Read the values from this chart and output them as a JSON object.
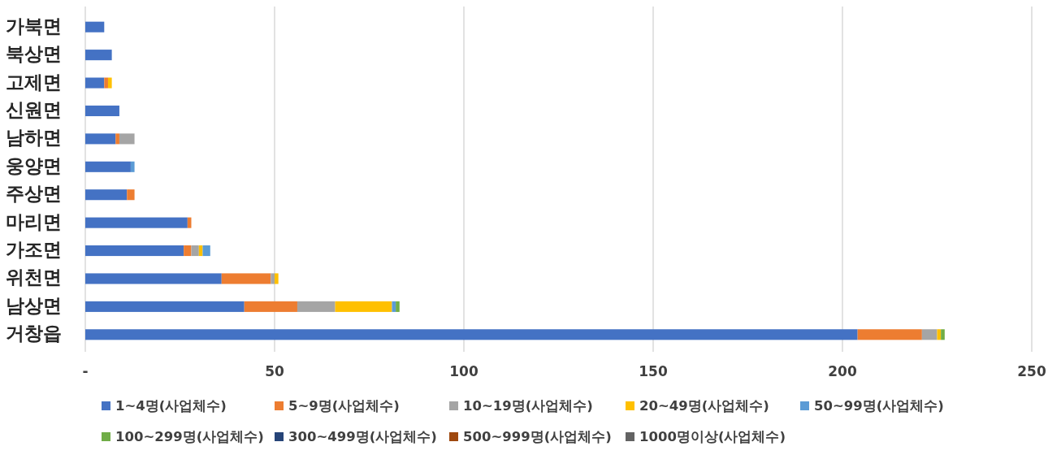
{
  "chart_data": {
    "type": "bar",
    "orientation": "horizontal",
    "stacked": true,
    "categories": [
      "가북면",
      "북상면",
      "고제면",
      "신원면",
      "남하면",
      "웅양면",
      "주상면",
      "마리면",
      "가조면",
      "위천면",
      "남상면",
      "거창읍"
    ],
    "series": [
      {
        "name": "1~4명(사업체수)",
        "color": "#4472c4",
        "values": [
          5,
          7,
          5,
          9,
          8,
          12,
          11,
          27,
          26,
          36,
          42,
          204
        ]
      },
      {
        "name": "5~9명(사업체수)",
        "color": "#ed7d31",
        "values": [
          0,
          0,
          1,
          0,
          1,
          0,
          2,
          1,
          2,
          13,
          14,
          17
        ]
      },
      {
        "name": "10~19명(사업체수)",
        "color": "#a5a5a5",
        "values": [
          0,
          0,
          0,
          0,
          4,
          0,
          0,
          0,
          2,
          1,
          10,
          4
        ]
      },
      {
        "name": "20~49명(사업체수)",
        "color": "#ffc000",
        "values": [
          0,
          0,
          1,
          0,
          0,
          0,
          0,
          0,
          1,
          1,
          15,
          1
        ]
      },
      {
        "name": "50~99명(사업체수)",
        "color": "#5b9bd5",
        "values": [
          0,
          0,
          0,
          0,
          0,
          1,
          0,
          0,
          2,
          0,
          1,
          0
        ]
      },
      {
        "name": "100~299명(사업체수)",
        "color": "#70ad47",
        "values": [
          0,
          0,
          0,
          0,
          0,
          0,
          0,
          0,
          0,
          0,
          1,
          1
        ]
      },
      {
        "name": "300~499명(사업체수)",
        "color": "#264478",
        "values": [
          0,
          0,
          0,
          0,
          0,
          0,
          0,
          0,
          0,
          0,
          0,
          0
        ]
      },
      {
        "name": "500~999명(사업체수)",
        "color": "#9e480e",
        "values": [
          0,
          0,
          0,
          0,
          0,
          0,
          0,
          0,
          0,
          0,
          0,
          0
        ]
      },
      {
        "name": "1000명이상(사업체수)",
        "color": "#636363",
        "values": [
          0,
          0,
          0,
          0,
          0,
          0,
          0,
          0,
          0,
          0,
          0,
          0
        ]
      }
    ],
    "xlim": [
      0,
      250
    ],
    "xticks": [
      {
        "value": 0,
        "label": "-"
      },
      50,
      100,
      150,
      200,
      250
    ],
    "grid": "x",
    "legend": "bottom"
  }
}
